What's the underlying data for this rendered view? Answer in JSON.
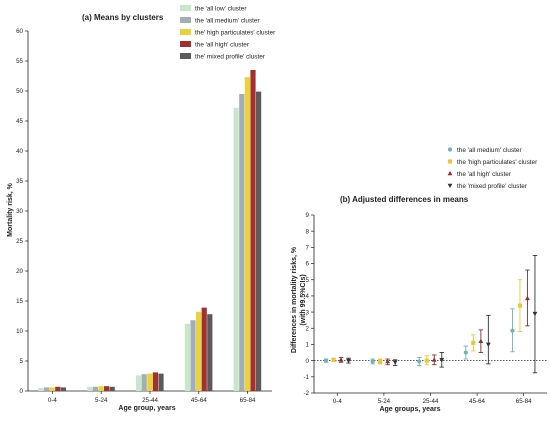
{
  "chart_data": [
    {
      "type": "bar",
      "title": "(a) Means by clusters",
      "xlabel": "Age group, years",
      "ylabel": "Mortality risk, %",
      "ylim": [
        0,
        60
      ],
      "yticks": [
        "0",
        "5",
        "10",
        "15",
        "20",
        "25",
        "30",
        "35",
        "40",
        "45",
        "50",
        "55",
        "60"
      ],
      "categories": [
        "0-4",
        "5-24",
        "25-44",
        "45-64",
        "65-84"
      ],
      "legend_position": "top-right",
      "series": [
        {
          "name": "the 'all low' cluster",
          "color": "#c8e6c9",
          "values": [
            0.5,
            0.7,
            2.6,
            11.2,
            47.2
          ]
        },
        {
          "name": "the 'all medium' cluster",
          "color": "#a3adb5",
          "values": [
            0.6,
            0.7,
            2.8,
            11.8,
            49.5
          ]
        },
        {
          "name": "the' high particulates' cluster",
          "color": "#e8d43a",
          "values": [
            0.6,
            0.8,
            2.9,
            13.2,
            52.3
          ]
        },
        {
          "name": "the 'all high' cluster",
          "color": "#a3302c",
          "values": [
            0.7,
            0.8,
            3.1,
            13.9,
            53.5
          ]
        },
        {
          "name": "the' mixed profile' cluster",
          "color": "#5a5a5a",
          "values": [
            0.6,
            0.7,
            2.9,
            12.8,
            49.9
          ]
        }
      ]
    },
    {
      "type": "scatter",
      "title": "(b) Adjusted differences in means",
      "xlabel": "Age groups, years",
      "ylabel": "Differences in mortality risks, %",
      "ylabel2": "(with 99.5%CIs)",
      "ylim": [
        -2,
        9
      ],
      "yticks": [
        "-2",
        "-1",
        "0",
        "1",
        "2",
        "3",
        "4",
        "5",
        "6",
        "7",
        "8",
        "9"
      ],
      "categories": [
        "0-4",
        "5-24",
        "25-44",
        "45-64",
        "65-84"
      ],
      "reference_line": 0,
      "legend_position": "top-right",
      "series": [
        {
          "name": "the 'all medium' cluster",
          "marker": "circle",
          "color": "#6fb3b8",
          "values": [
            0.0,
            -0.05,
            -0.05,
            0.5,
            1.85
          ],
          "lower": [
            -0.1,
            -0.2,
            -0.3,
            0.1,
            0.55
          ],
          "upper": [
            0.1,
            0.1,
            0.2,
            0.9,
            3.2
          ]
        },
        {
          "name": "the 'high particulates' cluster",
          "marker": "square",
          "color": "#e8c83a",
          "values": [
            0.05,
            -0.05,
            0.0,
            1.1,
            3.4
          ],
          "lower": [
            -0.05,
            -0.2,
            -0.25,
            0.6,
            1.8
          ],
          "upper": [
            0.15,
            0.1,
            0.3,
            1.6,
            5.0
          ]
        },
        {
          "name": "the 'all high' cluster",
          "marker": "triangle-up",
          "color": "#8b2e2e",
          "values": [
            0.05,
            -0.05,
            0.05,
            1.2,
            3.85
          ],
          "lower": [
            -0.1,
            -0.25,
            -0.25,
            0.5,
            2.15
          ],
          "upper": [
            0.2,
            0.1,
            0.35,
            1.9,
            5.6
          ]
        },
        {
          "name": "the 'mixed profile' cluster",
          "marker": "triangle-down",
          "color": "#333333",
          "values": [
            0.0,
            -0.1,
            0.05,
            1.0,
            2.9
          ],
          "lower": [
            -0.15,
            -0.3,
            -0.4,
            -0.2,
            -0.75
          ],
          "upper": [
            0.15,
            0.05,
            0.5,
            2.8,
            6.5
          ]
        }
      ]
    }
  ]
}
